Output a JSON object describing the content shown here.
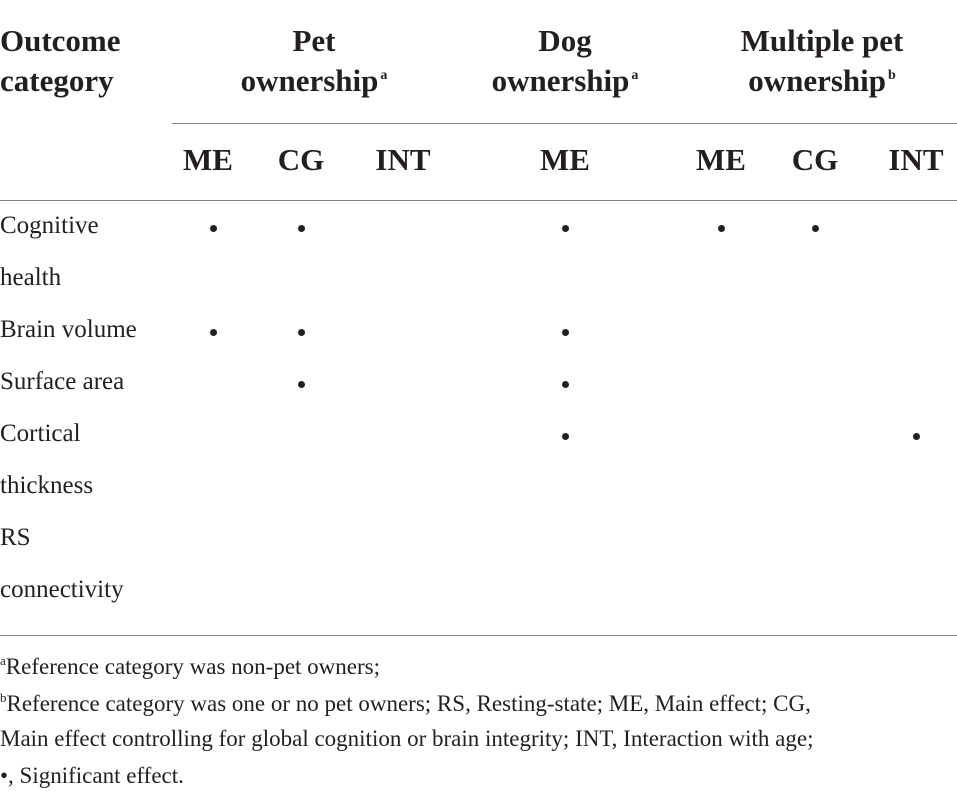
{
  "table": {
    "corner_header": [
      "Outcome",
      "category"
    ],
    "groups": [
      {
        "lines": [
          "Pet",
          "ownership"
        ],
        "sup": "a"
      },
      {
        "lines": [
          "Dog",
          "ownership"
        ],
        "sup": "a"
      },
      {
        "lines": [
          "Multiple pet",
          "ownership"
        ],
        "sup": "b"
      }
    ],
    "subheaders": [
      "ME",
      "CG",
      "INT",
      "ME",
      "ME",
      "CG",
      "INT"
    ],
    "rows": [
      {
        "label_lines": [
          "Cognitive",
          "health"
        ],
        "marks": [
          true,
          true,
          false,
          true,
          true,
          true,
          false
        ]
      },
      {
        "label_lines": [
          "Brain volume"
        ],
        "marks": [
          true,
          true,
          false,
          true,
          false,
          false,
          false
        ]
      },
      {
        "label_lines": [
          "Surface area"
        ],
        "marks": [
          false,
          true,
          false,
          true,
          false,
          false,
          false
        ]
      },
      {
        "label_lines": [
          "Cortical",
          "thickness"
        ],
        "marks": [
          false,
          false,
          false,
          true,
          false,
          false,
          true
        ]
      },
      {
        "label_lines": [
          "RS",
          "connectivity"
        ],
        "marks": [
          false,
          false,
          false,
          false,
          false,
          false,
          false
        ]
      }
    ]
  },
  "footnotes": {
    "a": {
      "marker": "a",
      "text": "Reference category was non-pet owners;"
    },
    "b": {
      "marker": "b",
      "line1": "Reference category was one or no pet owners; RS, Resting-state; ME, Main effect; CG,",
      "line2": "Main effect controlling for global cognition or brain integrity; INT, Interaction with age;",
      "line3": "•, Significant effect."
    }
  }
}
